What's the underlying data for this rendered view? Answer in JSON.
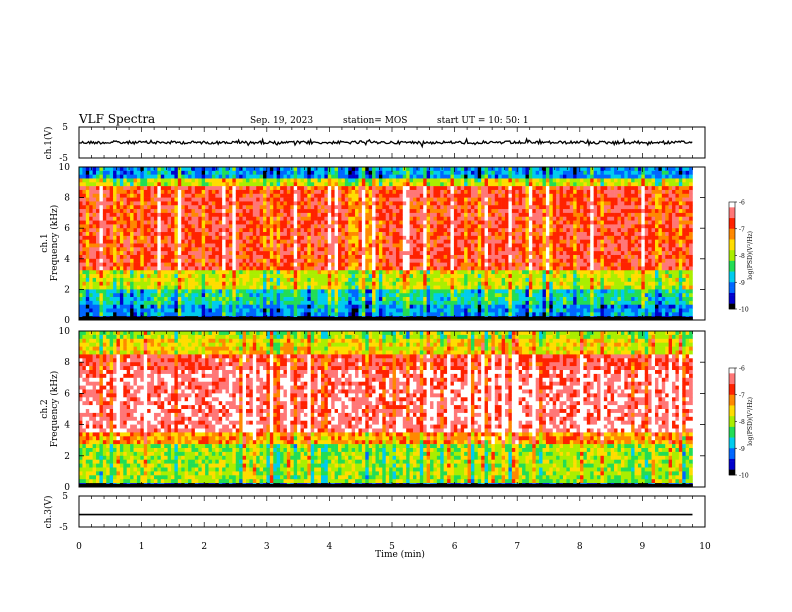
{
  "header": {
    "title": "VLF Spectra",
    "date": "Sep. 19, 2023",
    "station": "station= MOS",
    "start": "start  UT =   10: 50: 1"
  },
  "colors": {
    "spectrum_stops": [
      "#000000",
      "#0000cc",
      "#0066ff",
      "#00ccee",
      "#22dd55",
      "#aaee00",
      "#ffdd00",
      "#ff8800",
      "#ff2200",
      "#ff7777",
      "#ffffff"
    ],
    "trace": "#000000"
  },
  "chart_data": [
    {
      "type": "line",
      "name": "waveform-ch1",
      "ylabel": "ch.1(V)",
      "ylim": [
        -5,
        5
      ],
      "yticks": [
        "5",
        "-5"
      ],
      "xlim": [
        0,
        10
      ],
      "level": 0,
      "description_level": "noisy trace near 0 V"
    },
    {
      "type": "heatmap",
      "name": "spectrogram-ch1",
      "ylabel": "ch.1\nFrequency (kHz)",
      "ylim": [
        0,
        10
      ],
      "yticks": [
        "0",
        "2",
        "4",
        "6",
        "8",
        "10"
      ],
      "xlim": [
        0,
        10
      ],
      "data_end_min": 9.8,
      "colorbar": {
        "label": "log(PSD)(V²/Hz)",
        "range": [
          -10,
          -6
        ],
        "ticks": [
          "-6",
          "-7",
          "-8",
          "-9",
          "-10"
        ]
      }
    },
    {
      "type": "heatmap",
      "name": "spectrogram-ch2",
      "ylabel": "ch.2\nFrequency (kHz)",
      "ylim": [
        0,
        10
      ],
      "yticks": [
        "0",
        "2",
        "4",
        "6",
        "8",
        "10"
      ],
      "xlim": [
        0,
        10
      ],
      "data_end_min": 9.8,
      "colorbar": {
        "label": "log(PSD)(V²/Hz)",
        "range": [
          -10,
          -6
        ],
        "ticks": [
          "-6",
          "-7",
          "-8",
          "-9",
          "-10"
        ]
      }
    },
    {
      "type": "line",
      "name": "waveform-ch3",
      "ylabel": "ch.3(V)",
      "ylim": [
        -5,
        5
      ],
      "yticks": [
        "5",
        "-5"
      ],
      "xlim": [
        0,
        10
      ],
      "level": -1
    }
  ],
  "x_axis": {
    "label": "Time (min)",
    "ticks": [
      "0",
      "1",
      "2",
      "3",
      "4",
      "5",
      "6",
      "7",
      "8",
      "9",
      "10"
    ]
  },
  "panel_labels": {
    "ch1_wave": "ch.1(V)",
    "ch1_spec_a": "ch.1",
    "ch1_spec_b": "Frequency (kHz)",
    "ch2_spec_a": "ch.2",
    "ch2_spec_b": "Frequency (kHz)",
    "ch3_wave": "ch.3(V)",
    "cbar_label": "log(PSD)(V²/Hz)"
  }
}
